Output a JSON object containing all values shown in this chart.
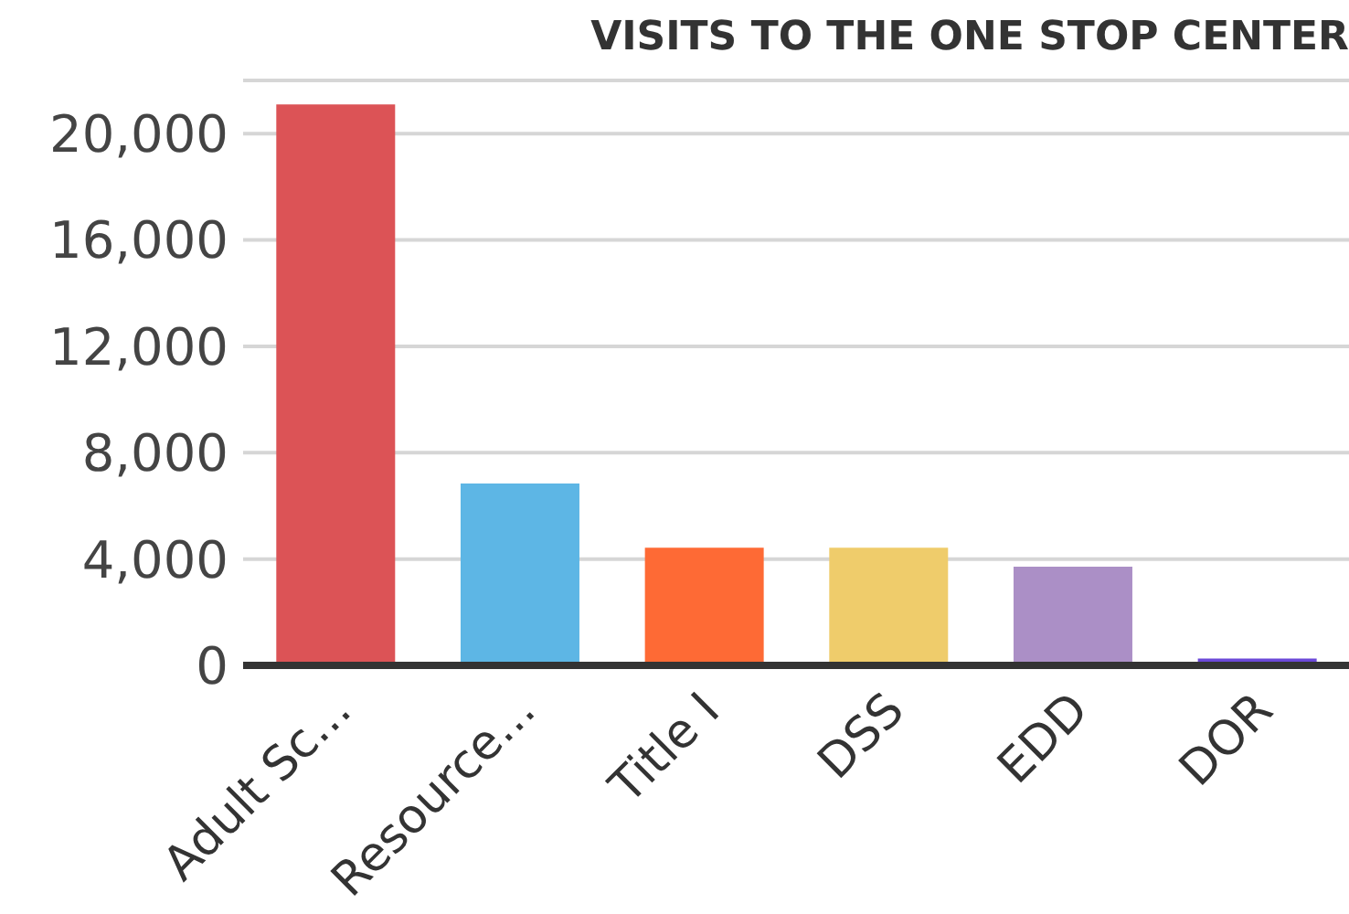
{
  "chart_data": {
    "type": "bar",
    "title": "VISITS TO THE ONE STOP CENTER",
    "categories": [
      "Adult Sc...",
      "Resource...",
      "Title I",
      "DSS",
      "EDD",
      "DOR"
    ],
    "values": [
      21100,
      6840,
      4430,
      4430,
      3710,
      260
    ],
    "colors": [
      "#dc5356",
      "#5db6e5",
      "#fe6a35",
      "#efcc6b",
      "#ab8fc6",
      "#6b48d8"
    ],
    "ylim": [
      0,
      22000
    ],
    "yticks": [
      0,
      {
        "value": 4000,
        "label": "4,000"
      },
      {
        "value": 8000,
        "label": "8,000"
      },
      {
        "value": 12000,
        "label": "12,000"
      },
      {
        "value": 16000,
        "label": "16,000"
      },
      {
        "value": 20000,
        "label": "20,000"
      }
    ],
    "grid": "y"
  }
}
